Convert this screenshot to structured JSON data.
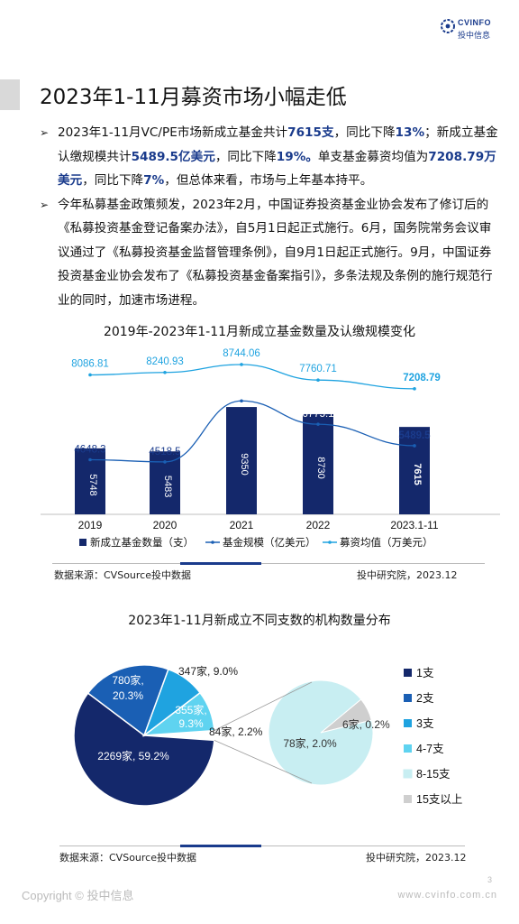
{
  "header": {
    "logo_text": "CVINFO",
    "logo_sub": "投中信息"
  },
  "page_title": "2023年1-11月募资市场小幅走低",
  "bullets": [
    {
      "segments": [
        {
          "t": "2023年1-11月VC/PE市场新成立基金共计",
          "s": "n"
        },
        {
          "t": "7615支",
          "s": "hl"
        },
        {
          "t": "，同比下降",
          "s": "n"
        },
        {
          "t": "13%",
          "s": "hl"
        },
        {
          "t": "；新成立基金认缴规模共计",
          "s": "n"
        },
        {
          "t": "5489.5亿美元",
          "s": "hl"
        },
        {
          "t": "，同比下降",
          "s": "n"
        },
        {
          "t": "19%。",
          "s": "hl"
        },
        {
          "t": "单支基金募资均值为",
          "s": "n"
        },
        {
          "t": "7208.79万美元",
          "s": "hl"
        },
        {
          "t": "，同比下降",
          "s": "n"
        },
        {
          "t": "7%",
          "s": "hl"
        },
        {
          "t": "，但总体来看，市场与上年基本持平。",
          "s": "n"
        }
      ]
    },
    {
      "segments": [
        {
          "t": "今年私募基金政策频发，2023年2月，中国证券投资基金业协会发布了修订后的《私募投资基金登记备案办法》，自5月1日起正式施行。6月，国务院常务会议审议通过了《私募投资基金监督管理条例》，自9月1日起正式施行。9月，中国证券投资基金业协会发布了《私募投资基金备案指引》，多条法规及条例的施行规范行业的同时，加速市场进程。",
          "s": "n"
        }
      ]
    }
  ],
  "bullet_symbol": "➢",
  "chart1": {
    "title": "2019年-2023年1-11月新成立基金数量及认缴规模变化",
    "source_left": "数据来源：CVSource投中数据",
    "source_right": "投中研究院，2023.12"
  },
  "chart2": {
    "title": "2023年1-11月新成立不同支数的机构数量分布",
    "source_left": "数据来源：CVSource投中数据",
    "source_right": "投中研究院，2023.12"
  },
  "footer": {
    "copyright": "Copyright © 投中信息",
    "website": "www.cvinfo.com.cn",
    "page_number": "3"
  },
  "chart_data": [
    {
      "type": "bar",
      "title": "2019年-2023年1-11月新成立基金数量及认缴规模变化",
      "categories": [
        "2019",
        "2020",
        "2021",
        "2022",
        "2023.1-11"
      ],
      "series": [
        {
          "name": "新成立基金数量（支）",
          "kind": "bar",
          "values": [
            5748,
            5483,
            9350,
            8730,
            7615
          ],
          "labels": [
            "5748",
            "5483",
            "9350",
            "8730",
            "7615"
          ],
          "color": "#14286b"
        },
        {
          "name": "基金规模（亿美元）",
          "kind": "line",
          "values": [
            4648.3,
            4518.5,
            8175.7,
            6775.1,
            5489.5
          ],
          "labels": [
            "4648.3",
            "4518.5",
            "8175.7",
            "6775.1",
            "5489.5"
          ],
          "color": "#1a5fb4"
        },
        {
          "name": "募资均值（万美元）",
          "kind": "line",
          "values": [
            8086.81,
            8240.93,
            8744.06,
            7760.71,
            7208.79
          ],
          "labels": [
            "8086.81",
            "8240.93",
            "8744.06",
            "7760.71",
            "7208.79"
          ],
          "color": "#1fa3e0"
        }
      ],
      "legend_position": "bottom",
      "grid": false
    },
    {
      "type": "pie",
      "title": "2023年1-11月新成立不同支数的机构数量分布",
      "slices": [
        {
          "name": "1支",
          "value": 2269,
          "percent": 59.2,
          "label": "2269家, 59.2%",
          "color": "#14286b"
        },
        {
          "name": "2支",
          "value": 780,
          "percent": 20.3,
          "label": "780家, 20.3%",
          "color": "#1a5fb4"
        },
        {
          "name": "3支",
          "value": 347,
          "percent": 9.0,
          "label": "347家, 9.0%",
          "color": "#1fa3e0"
        },
        {
          "name": "4-7支",
          "value": 355,
          "percent": 9.3,
          "label": "355家, 9.3%",
          "color": "#5fd3f0"
        },
        {
          "name": "8-15支",
          "value": 78,
          "percent": 2.0,
          "label": "78家, 2.0%",
          "color": "#c8eef2"
        },
        {
          "name": "15支以上",
          "value": 6,
          "percent": 0.2,
          "label": "6家, 0.2%",
          "color": "#cfcfcf"
        }
      ],
      "sub_pie": {
        "combined_label": "84家, 2.2%",
        "members": [
          "8-15支",
          "15支以上"
        ]
      },
      "legend_position": "right"
    }
  ]
}
